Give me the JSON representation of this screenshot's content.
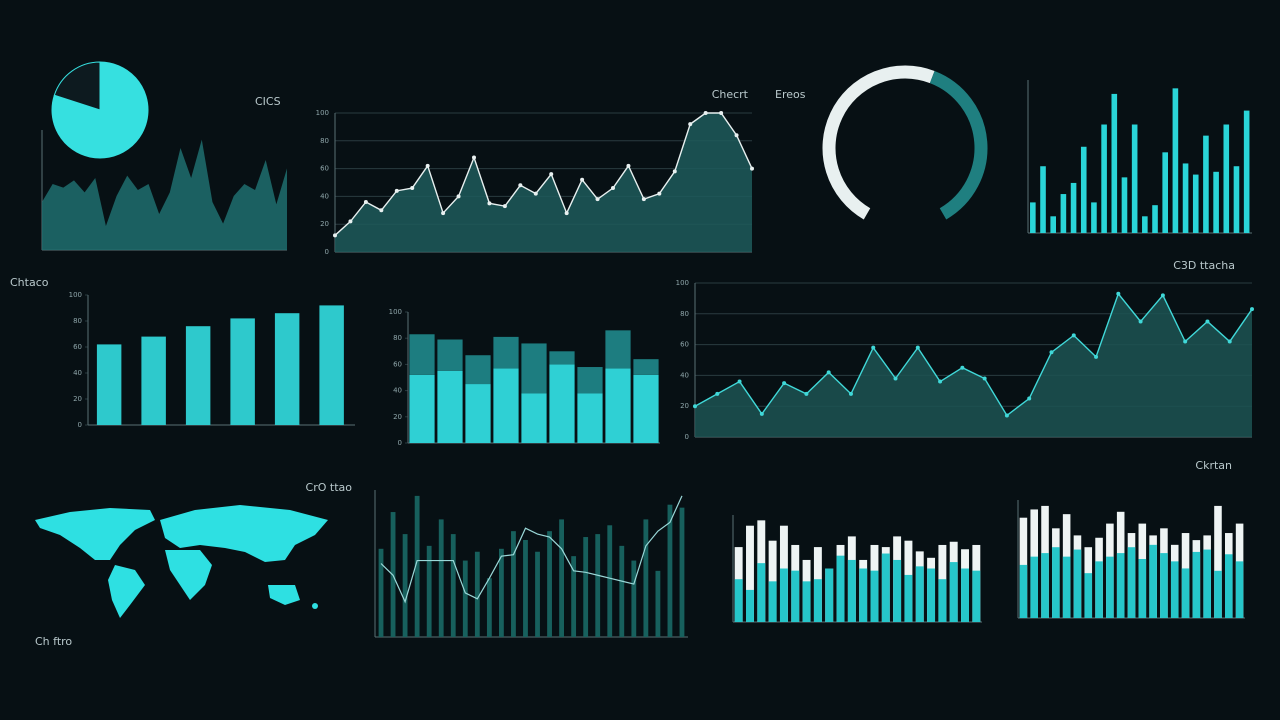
{
  "chart_data": [
    {
      "type": "pie",
      "values": [
        80,
        20
      ],
      "colors": [
        "#36e0e0",
        "#0d1a1f"
      ]
    },
    {
      "type": "area",
      "title": "CICS",
      "color": "#1f6f6e",
      "ylim": [
        0,
        100
      ],
      "values": [
        40,
        55,
        52,
        58,
        48,
        60,
        20,
        45,
        62,
        50,
        55,
        30,
        48,
        85,
        60,
        92,
        40,
        22,
        45,
        55,
        50,
        75,
        38,
        68
      ]
    },
    {
      "type": "line",
      "title": "Checrt",
      "color": "#1d5b5a",
      "line_color": "#e8f0f0",
      "ylim": [
        0,
        100
      ],
      "yticks": [
        0,
        20,
        40,
        60,
        80,
        100
      ],
      "grid": true,
      "values": [
        12,
        22,
        36,
        30,
        44,
        46,
        62,
        28,
        40,
        68,
        35,
        33,
        48,
        42,
        56,
        28,
        52,
        38,
        46,
        62,
        38,
        42,
        58,
        92,
        100,
        100,
        84,
        60
      ]
    },
    {
      "type": "donut",
      "title": "Ereos",
      "values": [
        57,
        43
      ],
      "colors": [
        "#e8f0f0",
        "#1f7f80"
      ]
    },
    {
      "type": "bar",
      "title": "C3D ttacha",
      "color": "#2ad5d8",
      "ylim": [
        0,
        110
      ],
      "values": [
        22,
        48,
        12,
        28,
        36,
        62,
        22,
        78,
        100,
        40,
        78,
        12,
        20,
        58,
        104,
        50,
        42,
        70,
        44,
        78,
        48,
        88
      ]
    },
    {
      "type": "bar",
      "title": "Chtaco",
      "color": "#2ec9cc",
      "ylim": [
        0,
        100
      ],
      "yticks": [
        0,
        20,
        40,
        60,
        80,
        100
      ],
      "values": [
        62,
        68,
        76,
        82,
        86,
        92
      ]
    },
    {
      "type": "stacked-bar",
      "ylim": [
        0,
        100
      ],
      "yticks": [
        0,
        20,
        40,
        60,
        80,
        100
      ],
      "series": [
        {
          "color": "#2fd0d4",
          "values": [
            52,
            55,
            45,
            57,
            38,
            60,
            38,
            57,
            52
          ]
        },
        {
          "color": "#1d7d80",
          "values": [
            31,
            24,
            22,
            24,
            38,
            10,
            20,
            29,
            12
          ]
        }
      ]
    },
    {
      "type": "line",
      "title": "Ckrtan",
      "color": "#1c5452",
      "line_color": "#40d8d8",
      "ylim": [
        0,
        100
      ],
      "yticks": [
        0,
        20,
        40,
        60,
        80,
        100
      ],
      "grid": true,
      "values": [
        20,
        28,
        36,
        15,
        35,
        28,
        42,
        28,
        58,
        38,
        58,
        36,
        45,
        38,
        14,
        25,
        55,
        66,
        52,
        93,
        75,
        92,
        62,
        75,
        62,
        83
      ]
    },
    {
      "type": "bar-line",
      "title": "CrO ttao",
      "ylim": [
        0,
        100
      ],
      "series": [
        {
          "mark": "bar",
          "color": "#17605d",
          "values": [
            60,
            85,
            70,
            96,
            62,
            80,
            70,
            52,
            58,
            40,
            60,
            72,
            66,
            58,
            72,
            80,
            55,
            68,
            70,
            76,
            62,
            52,
            80,
            45,
            90,
            88
          ]
        },
        {
          "mark": "line",
          "color": "#9ad8d8",
          "values": [
            50,
            42,
            24,
            52,
            52,
            52,
            52,
            30,
            26,
            40,
            55,
            56,
            74,
            70,
            68,
            60,
            45,
            44,
            42,
            40,
            38,
            36,
            62,
            72,
            78,
            96
          ]
        }
      ]
    },
    {
      "type": "overlap-bar",
      "ylim": [
        0,
        100
      ],
      "series": [
        {
          "color": "#eef4f4",
          "values": [
            70,
            90,
            95,
            76,
            90,
            72,
            58,
            70,
            50,
            72,
            80,
            58,
            72,
            70,
            80,
            76,
            66,
            60,
            72,
            75,
            68,
            72
          ]
        },
        {
          "color": "#26c6ca",
          "values": [
            40,
            30,
            55,
            38,
            50,
            48,
            38,
            40,
            50,
            62,
            58,
            50,
            48,
            64,
            58,
            44,
            52,
            50,
            40,
            56,
            50,
            48
          ]
        }
      ]
    },
    {
      "type": "overlap-bar",
      "ylim": [
        0,
        100
      ],
      "series": [
        {
          "color": "#eef4f4",
          "values": [
            85,
            92,
            95,
            76,
            88,
            70,
            60,
            68,
            80,
            90,
            72,
            80,
            70,
            76,
            62,
            72,
            66,
            70,
            95,
            72,
            80
          ]
        },
        {
          "color": "#26c6ca",
          "values": [
            45,
            52,
            55,
            60,
            52,
            58,
            38,
            48,
            52,
            55,
            60,
            50,
            62,
            55,
            48,
            42,
            56,
            58,
            40,
            54,
            48
          ]
        }
      ]
    }
  ],
  "map": {
    "label": "Ch ftro"
  }
}
